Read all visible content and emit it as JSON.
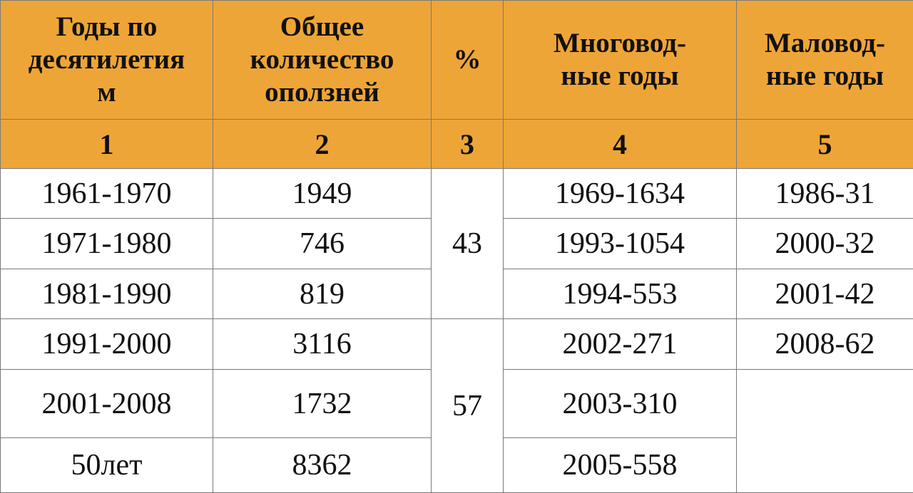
{
  "table": {
    "headers": [
      "Годы по десятилетиям",
      "Общее количество оползней",
      "%",
      "Многовод-ные годы",
      "Маловод-ные годы"
    ],
    "header_lines": [
      [
        "Годы по",
        "десятилетия",
        "м"
      ],
      [
        "Общее",
        "количество",
        "оползней"
      ],
      [
        "%"
      ],
      [
        "Многовод-",
        "ные годы"
      ],
      [
        "Маловод-",
        "ные годы"
      ]
    ],
    "column_numbers": [
      "1",
      "2",
      "3",
      "4",
      "5"
    ],
    "rows": [
      {
        "period": "1961-1970",
        "total": "1949",
        "high_water": "1969-1634",
        "low_water": "1986-31"
      },
      {
        "period": "1971-1980",
        "total": "746",
        "high_water": "1993-1054",
        "low_water": "2000-32"
      },
      {
        "period": "1981-1990",
        "total": "819",
        "high_water": "1994-553",
        "low_water": "2001-42"
      },
      {
        "period": "1991-2000",
        "total": "3116",
        "high_water": "2002-271",
        "low_water": "2008-62"
      },
      {
        "period": "2001-2008",
        "total": "1732",
        "high_water": "2003-310",
        "low_water": ""
      },
      {
        "period": "50лет",
        "total": "8362",
        "high_water": "2005-558",
        "low_water": ""
      }
    ],
    "percent_groups": [
      "43",
      "57"
    ]
  }
}
